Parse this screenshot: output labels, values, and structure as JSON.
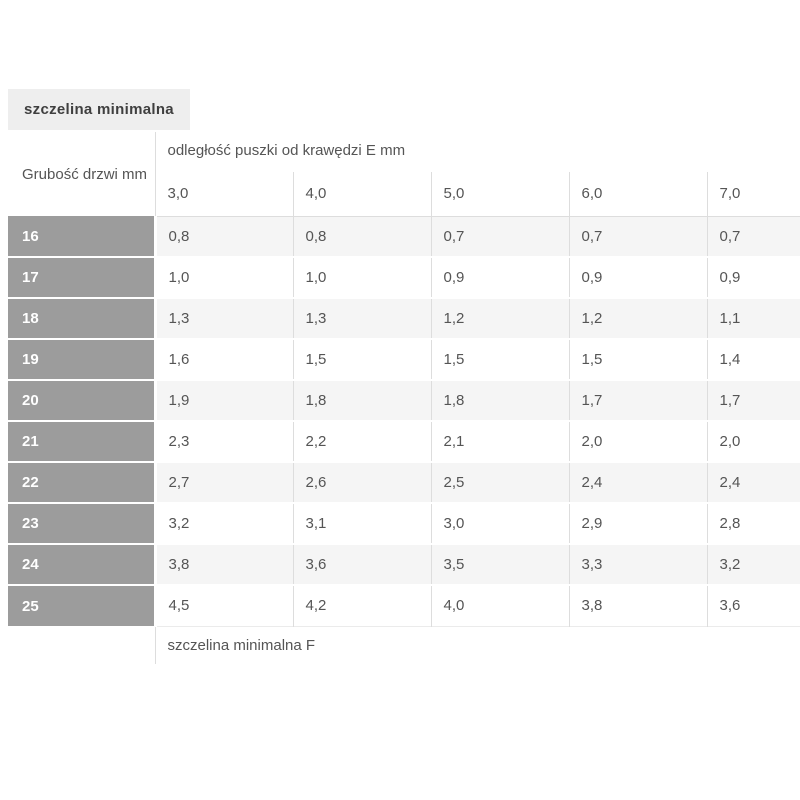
{
  "tab": {
    "label": "szczelina minimalna"
  },
  "table": {
    "row_header_title": "Grubość drzwi mm",
    "column_group_title": "odległość puszki od krawędzi E mm",
    "column_headers": [
      "3,0",
      "4,0",
      "5,0",
      "6,0",
      "7,0"
    ],
    "rows": [
      {
        "label": "16",
        "values": [
          "0,8",
          "0,8",
          "0,7",
          "0,7",
          "0,7"
        ]
      },
      {
        "label": "17",
        "values": [
          "1,0",
          "1,0",
          "0,9",
          "0,9",
          "0,9"
        ]
      },
      {
        "label": "18",
        "values": [
          "1,3",
          "1,3",
          "1,2",
          "1,2",
          "1,1"
        ]
      },
      {
        "label": "19",
        "values": [
          "1,6",
          "1,5",
          "1,5",
          "1,5",
          "1,4"
        ]
      },
      {
        "label": "20",
        "values": [
          "1,9",
          "1,8",
          "1,8",
          "1,7",
          "1,7"
        ]
      },
      {
        "label": "21",
        "values": [
          "2,3",
          "2,2",
          "2,1",
          "2,0",
          "2,0"
        ]
      },
      {
        "label": "22",
        "values": [
          "2,7",
          "2,6",
          "2,5",
          "2,4",
          "2,4"
        ]
      },
      {
        "label": "23",
        "values": [
          "3,2",
          "3,1",
          "3,0",
          "2,9",
          "2,8"
        ]
      },
      {
        "label": "24",
        "values": [
          "3,8",
          "3,6",
          "3,5",
          "3,3",
          "3,2"
        ]
      },
      {
        "label": "25",
        "values": [
          "4,5",
          "4,2",
          "4,0",
          "3,8",
          "3,6"
        ]
      }
    ],
    "footer": "szczelina minimalna F"
  },
  "colors": {
    "tab_bg": "#eeeeee",
    "tab_text": "#3f3f3f",
    "row_header_bg": "#9c9c9c",
    "row_header_text": "#ffffff",
    "row_alt_bg": "#f5f5f5",
    "border": "#dddddd",
    "text": "#555555"
  }
}
